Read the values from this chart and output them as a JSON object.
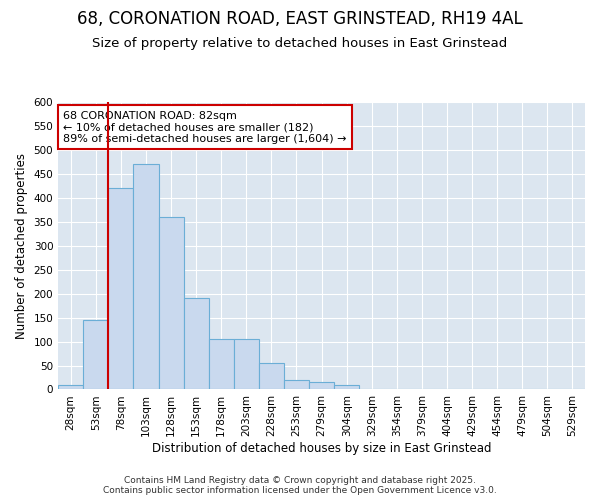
{
  "title_line1": "68, CORONATION ROAD, EAST GRINSTEAD, RH19 4AL",
  "title_line2": "Size of property relative to detached houses in East Grinstead",
  "xlabel": "Distribution of detached houses by size in East Grinstead",
  "ylabel": "Number of detached properties",
  "bar_color": "#c9d9ee",
  "bar_edge_color": "#6baed6",
  "background_color": "#ffffff",
  "plot_bg_color": "#dce6f0",
  "grid_color": "#ffffff",
  "bin_labels": [
    "28sqm",
    "53sqm",
    "78sqm",
    "103sqm",
    "128sqm",
    "153sqm",
    "178sqm",
    "203sqm",
    "228sqm",
    "253sqm",
    "279sqm",
    "304sqm",
    "329sqm",
    "354sqm",
    "379sqm",
    "404sqm",
    "429sqm",
    "454sqm",
    "479sqm",
    "504sqm",
    "529sqm"
  ],
  "bar_heights": [
    10,
    145,
    420,
    470,
    360,
    190,
    105,
    105,
    55,
    20,
    15,
    10,
    2,
    1,
    0,
    0,
    0,
    0,
    0,
    0,
    1
  ],
  "vline_color": "#cc0000",
  "vline_bin_index": 2,
  "annotation_text": "68 CORONATION ROAD: 82sqm\n← 10% of detached houses are smaller (182)\n89% of semi-detached houses are larger (1,604) →",
  "annotation_box_color": "#ffffff",
  "annotation_edge_color": "#cc0000",
  "ylim": [
    0,
    600
  ],
  "yticks": [
    0,
    50,
    100,
    150,
    200,
    250,
    300,
    350,
    400,
    450,
    500,
    550,
    600
  ],
  "footer_text": "Contains HM Land Registry data © Crown copyright and database right 2025.\nContains public sector information licensed under the Open Government Licence v3.0.",
  "title_fontsize": 12,
  "subtitle_fontsize": 9.5,
  "axis_label_fontsize": 8.5,
  "tick_fontsize": 7.5,
  "annotation_fontsize": 8,
  "footer_fontsize": 6.5
}
